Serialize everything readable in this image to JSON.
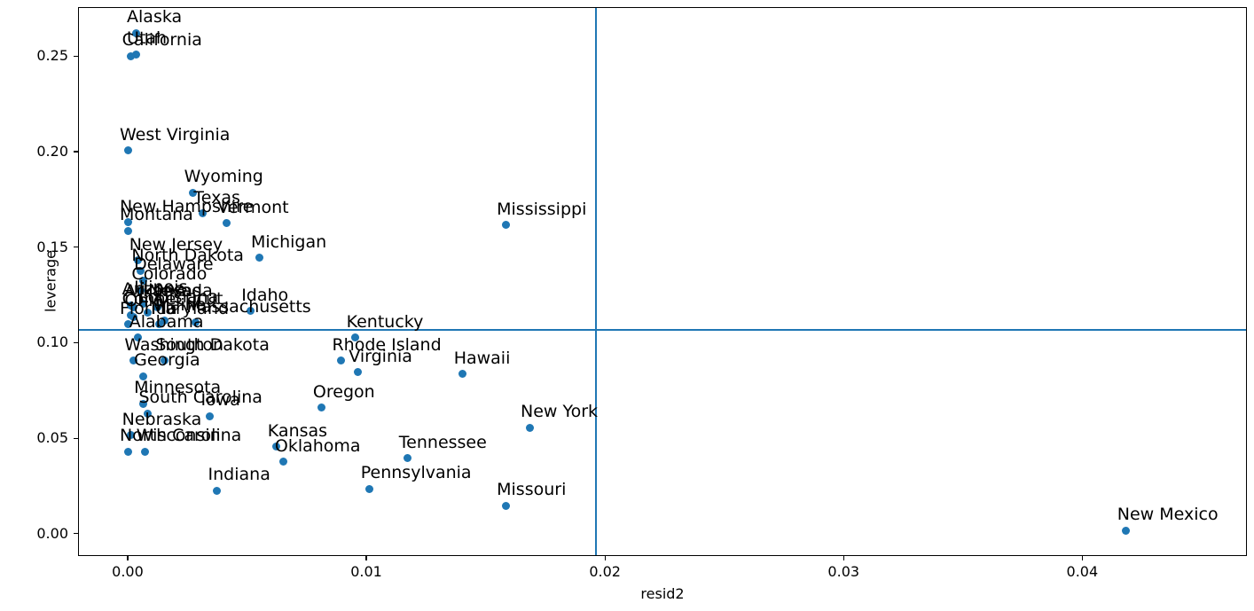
{
  "chart_data": {
    "type": "scatter",
    "title": "",
    "xlabel": "resid2",
    "ylabel": "leverage",
    "xlim": [
      -0.00208,
      0.0469
    ],
    "ylim": [
      -0.0117,
      0.2757
    ],
    "grid": false,
    "legend": null,
    "colors": {
      "marker": "#1f77b4",
      "reference_line": "#1f77b4",
      "axis": "#000000",
      "label_text": "#000000"
    },
    "xticks": [
      {
        "value": 0.0,
        "label": "0.00"
      },
      {
        "value": 0.01,
        "label": "0.01"
      },
      {
        "value": 0.02,
        "label": "0.02"
      },
      {
        "value": 0.03,
        "label": "0.03"
      },
      {
        "value": 0.04,
        "label": "0.04"
      }
    ],
    "yticks": [
      {
        "value": 0.0,
        "label": "0.00"
      },
      {
        "value": 0.05,
        "label": "0.05"
      },
      {
        "value": 0.1,
        "label": "0.10"
      },
      {
        "value": 0.15,
        "label": "0.15"
      },
      {
        "value": 0.2,
        "label": "0.20"
      },
      {
        "value": 0.25,
        "label": "0.25"
      }
    ],
    "reference_lines": {
      "hline_y": 0.107,
      "vline_x": 0.0196
    },
    "points": [
      {
        "label": "Alaska",
        "x": 0.0003,
        "y": 0.2625
      },
      {
        "label": "Utah",
        "x": 0.0003,
        "y": 0.2515
      },
      {
        "label": "California",
        "x": 0.0001,
        "y": 0.2505
      },
      {
        "label": "West Virginia",
        "x": 0.0,
        "y": 0.201
      },
      {
        "label": "Wyoming",
        "x": 0.0027,
        "y": 0.179
      },
      {
        "label": "Texas",
        "x": 0.0031,
        "y": 0.168
      },
      {
        "label": "New Hampshire",
        "x": 0.0,
        "y": 0.1635
      },
      {
        "label": "Vermont",
        "x": 0.0041,
        "y": 0.163
      },
      {
        "label": "Mississippi",
        "x": 0.0158,
        "y": 0.162
      },
      {
        "label": "Montana",
        "x": 0.0,
        "y": 0.159
      },
      {
        "label": "Michigan",
        "x": 0.0055,
        "y": 0.145
      },
      {
        "label": "New Jersey",
        "x": 0.0004,
        "y": 0.1435
      },
      {
        "label": "North Dakota",
        "x": 0.0005,
        "y": 0.138
      },
      {
        "label": "Delaware",
        "x": 0.0006,
        "y": 0.133
      },
      {
        "label": "Colorado",
        "x": 0.0005,
        "y": 0.128
      },
      {
        "label": "Illinois",
        "x": 0.0006,
        "y": 0.121
      },
      {
        "label": "Arizona",
        "x": 0.0001,
        "y": 0.12
      },
      {
        "label": "Arkansas",
        "x": 0.0002,
        "y": 0.119
      },
      {
        "label": "Nevada",
        "x": 0.0012,
        "y": 0.119
      },
      {
        "label": "Idaho",
        "x": 0.0051,
        "y": 0.117
      },
      {
        "label": "Louisiana",
        "x": 0.0008,
        "y": 0.116
      },
      {
        "label": "Connecticut",
        "x": 0.0001,
        "y": 0.115
      },
      {
        "label": "Ohio",
        "x": 0.0002,
        "y": 0.114
      },
      {
        "label": "Maine",
        "x": 0.0015,
        "y": 0.112
      },
      {
        "label": "Massachusetts",
        "x": 0.0028,
        "y": 0.111
      },
      {
        "label": "Florida",
        "x": 0.0,
        "y": 0.11
      },
      {
        "label": "Maryland",
        "x": 0.0013,
        "y": 0.11
      },
      {
        "label": "Kentucky",
        "x": 0.0095,
        "y": 0.103
      },
      {
        "label": "Alabama",
        "x": 0.0004,
        "y": 0.103
      },
      {
        "label": "Washington",
        "x": 0.0002,
        "y": 0.091
      },
      {
        "label": "South Dakota",
        "x": 0.0015,
        "y": 0.091
      },
      {
        "label": "Rhode Island",
        "x": 0.0089,
        "y": 0.091
      },
      {
        "label": "Virginia",
        "x": 0.0096,
        "y": 0.085
      },
      {
        "label": "Hawaii",
        "x": 0.014,
        "y": 0.084
      },
      {
        "label": "Georgia",
        "x": 0.0006,
        "y": 0.083
      },
      {
        "label": "Minnesota",
        "x": 0.0006,
        "y": 0.0685
      },
      {
        "label": "Oregon",
        "x": 0.0081,
        "y": 0.0665
      },
      {
        "label": "South Carolina",
        "x": 0.0008,
        "y": 0.0635
      },
      {
        "label": "Iowa",
        "x": 0.0034,
        "y": 0.062
      },
      {
        "label": "New York",
        "x": 0.0168,
        "y": 0.056
      },
      {
        "label": "Nebraska",
        "x": 0.0001,
        "y": 0.052
      },
      {
        "label": "Kansas",
        "x": 0.0062,
        "y": 0.046
      },
      {
        "label": "Wisconsin",
        "x": 0.0007,
        "y": 0.0435
      },
      {
        "label": "North Carolina",
        "x": 0.0,
        "y": 0.0435
      },
      {
        "label": "Tennessee",
        "x": 0.0117,
        "y": 0.04
      },
      {
        "label": "Oklahoma",
        "x": 0.0065,
        "y": 0.038
      },
      {
        "label": "Pennsylvania",
        "x": 0.0101,
        "y": 0.024
      },
      {
        "label": "Indiana",
        "x": 0.0037,
        "y": 0.023
      },
      {
        "label": "Missouri",
        "x": 0.0158,
        "y": 0.015
      },
      {
        "label": "New Mexico",
        "x": 0.0418,
        "y": 0.002
      }
    ]
  }
}
